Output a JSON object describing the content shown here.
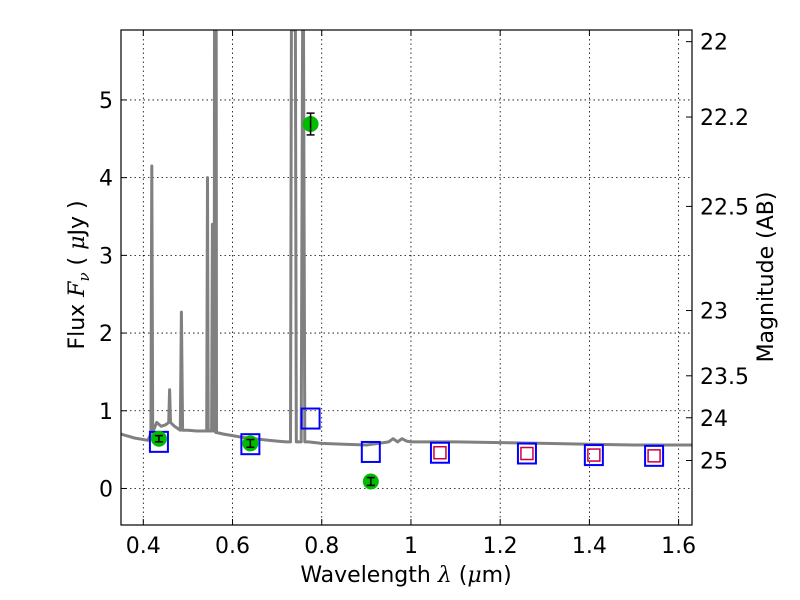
{
  "chart_data": {
    "type": "scatter",
    "xlabel": "Wavelength  λ (μm)",
    "ylabel": "Flux  Fν  ( μJy )",
    "y2label": "Magnitude (AB)",
    "xlim": [
      0.35,
      1.63
    ],
    "ylim": [
      -0.47,
      5.9
    ],
    "grid": true,
    "x_ticks": [
      0.4,
      0.6,
      0.8,
      1.0,
      1.2,
      1.4,
      1.6
    ],
    "x_tick_labels": [
      "0.4",
      "0.6",
      "0.8",
      "1",
      "1.2",
      "1.4",
      "1.6"
    ],
    "y_ticks": [
      0,
      1,
      2,
      3,
      4,
      5
    ],
    "y_tick_labels": [
      "0",
      "1",
      "2",
      "3",
      "4",
      "5"
    ],
    "y2_ticks": [
      22,
      22.2,
      22.5,
      23,
      23.5,
      24,
      25
    ],
    "y2_tick_labels": [
      "22",
      "22.2",
      "22.5",
      "23",
      "23.5",
      "24",
      "25"
    ],
    "y2_flux_values": [
      5.75,
      4.78,
      3.63,
      2.29,
      1.45,
      0.91,
      0.36
    ],
    "series": [
      {
        "kind": "model-spectrum",
        "color": "#808080",
        "x": [
          0.35,
          0.38,
          0.41,
          0.417,
          0.419,
          0.421,
          0.43,
          0.44,
          0.45,
          0.457,
          0.459,
          0.461,
          0.47,
          0.483,
          0.4855,
          0.488,
          0.5,
          0.52,
          0.542,
          0.544,
          0.5455,
          0.547,
          0.55,
          0.553,
          0.555,
          0.557,
          0.558,
          0.559,
          0.5595,
          0.5605,
          0.561,
          0.5625,
          0.5635,
          0.564,
          0.58,
          0.6,
          0.62,
          0.65,
          0.68,
          0.7,
          0.72,
          0.73,
          0.732,
          0.735,
          0.738,
          0.741,
          0.743,
          0.75,
          0.754,
          0.757,
          0.759,
          0.762,
          0.77,
          0.8,
          0.85,
          0.9,
          0.95,
          0.96,
          0.97,
          0.98,
          0.99,
          1.0,
          1.05,
          1.1,
          1.2,
          1.3,
          1.4,
          1.5,
          1.63
        ],
        "y": [
          0.7,
          0.65,
          0.62,
          0.7,
          4.15,
          0.72,
          0.85,
          0.8,
          0.82,
          0.85,
          1.27,
          0.85,
          0.8,
          0.75,
          2.27,
          0.75,
          0.75,
          0.74,
          0.74,
          4.0,
          0.74,
          0.74,
          0.74,
          0.74,
          3.4,
          0.74,
          0.74,
          0.74,
          5.9,
          5.9,
          0.74,
          0.72,
          5.9,
          0.72,
          0.7,
          0.68,
          0.66,
          0.64,
          0.62,
          0.61,
          0.6,
          0.6,
          5.9,
          5.9,
          5.9,
          5.9,
          0.6,
          0.6,
          0.6,
          5.9,
          5.9,
          0.6,
          0.6,
          0.58,
          0.57,
          0.56,
          0.6,
          0.64,
          0.6,
          0.64,
          0.61,
          0.6,
          0.6,
          0.6,
          0.59,
          0.58,
          0.57,
          0.56,
          0.56
        ]
      },
      {
        "kind": "model-photometry",
        "color": "#0000ff",
        "marker": "open-square",
        "x": [
          0.435,
          0.64,
          0.775,
          0.91,
          1.065,
          1.26,
          1.41,
          1.545
        ],
        "y": [
          0.6,
          0.57,
          0.9,
          0.47,
          0.46,
          0.45,
          0.43,
          0.42
        ]
      },
      {
        "kind": "observed-photometry",
        "color": "#00bb00",
        "marker": "filled-circle",
        "x": [
          0.435,
          0.64,
          0.775,
          0.91
        ],
        "y": [
          0.64,
          0.58,
          4.69,
          0.09
        ],
        "yerr": [
          0.04,
          0.05,
          0.14,
          0.05
        ]
      },
      {
        "kind": "upper-limit-photometry",
        "color": "#cc0044",
        "marker": "small-open-square",
        "x": [
          1.065,
          1.26,
          1.41,
          1.545
        ],
        "y": [
          0.46,
          0.45,
          0.43,
          0.42
        ]
      }
    ]
  }
}
